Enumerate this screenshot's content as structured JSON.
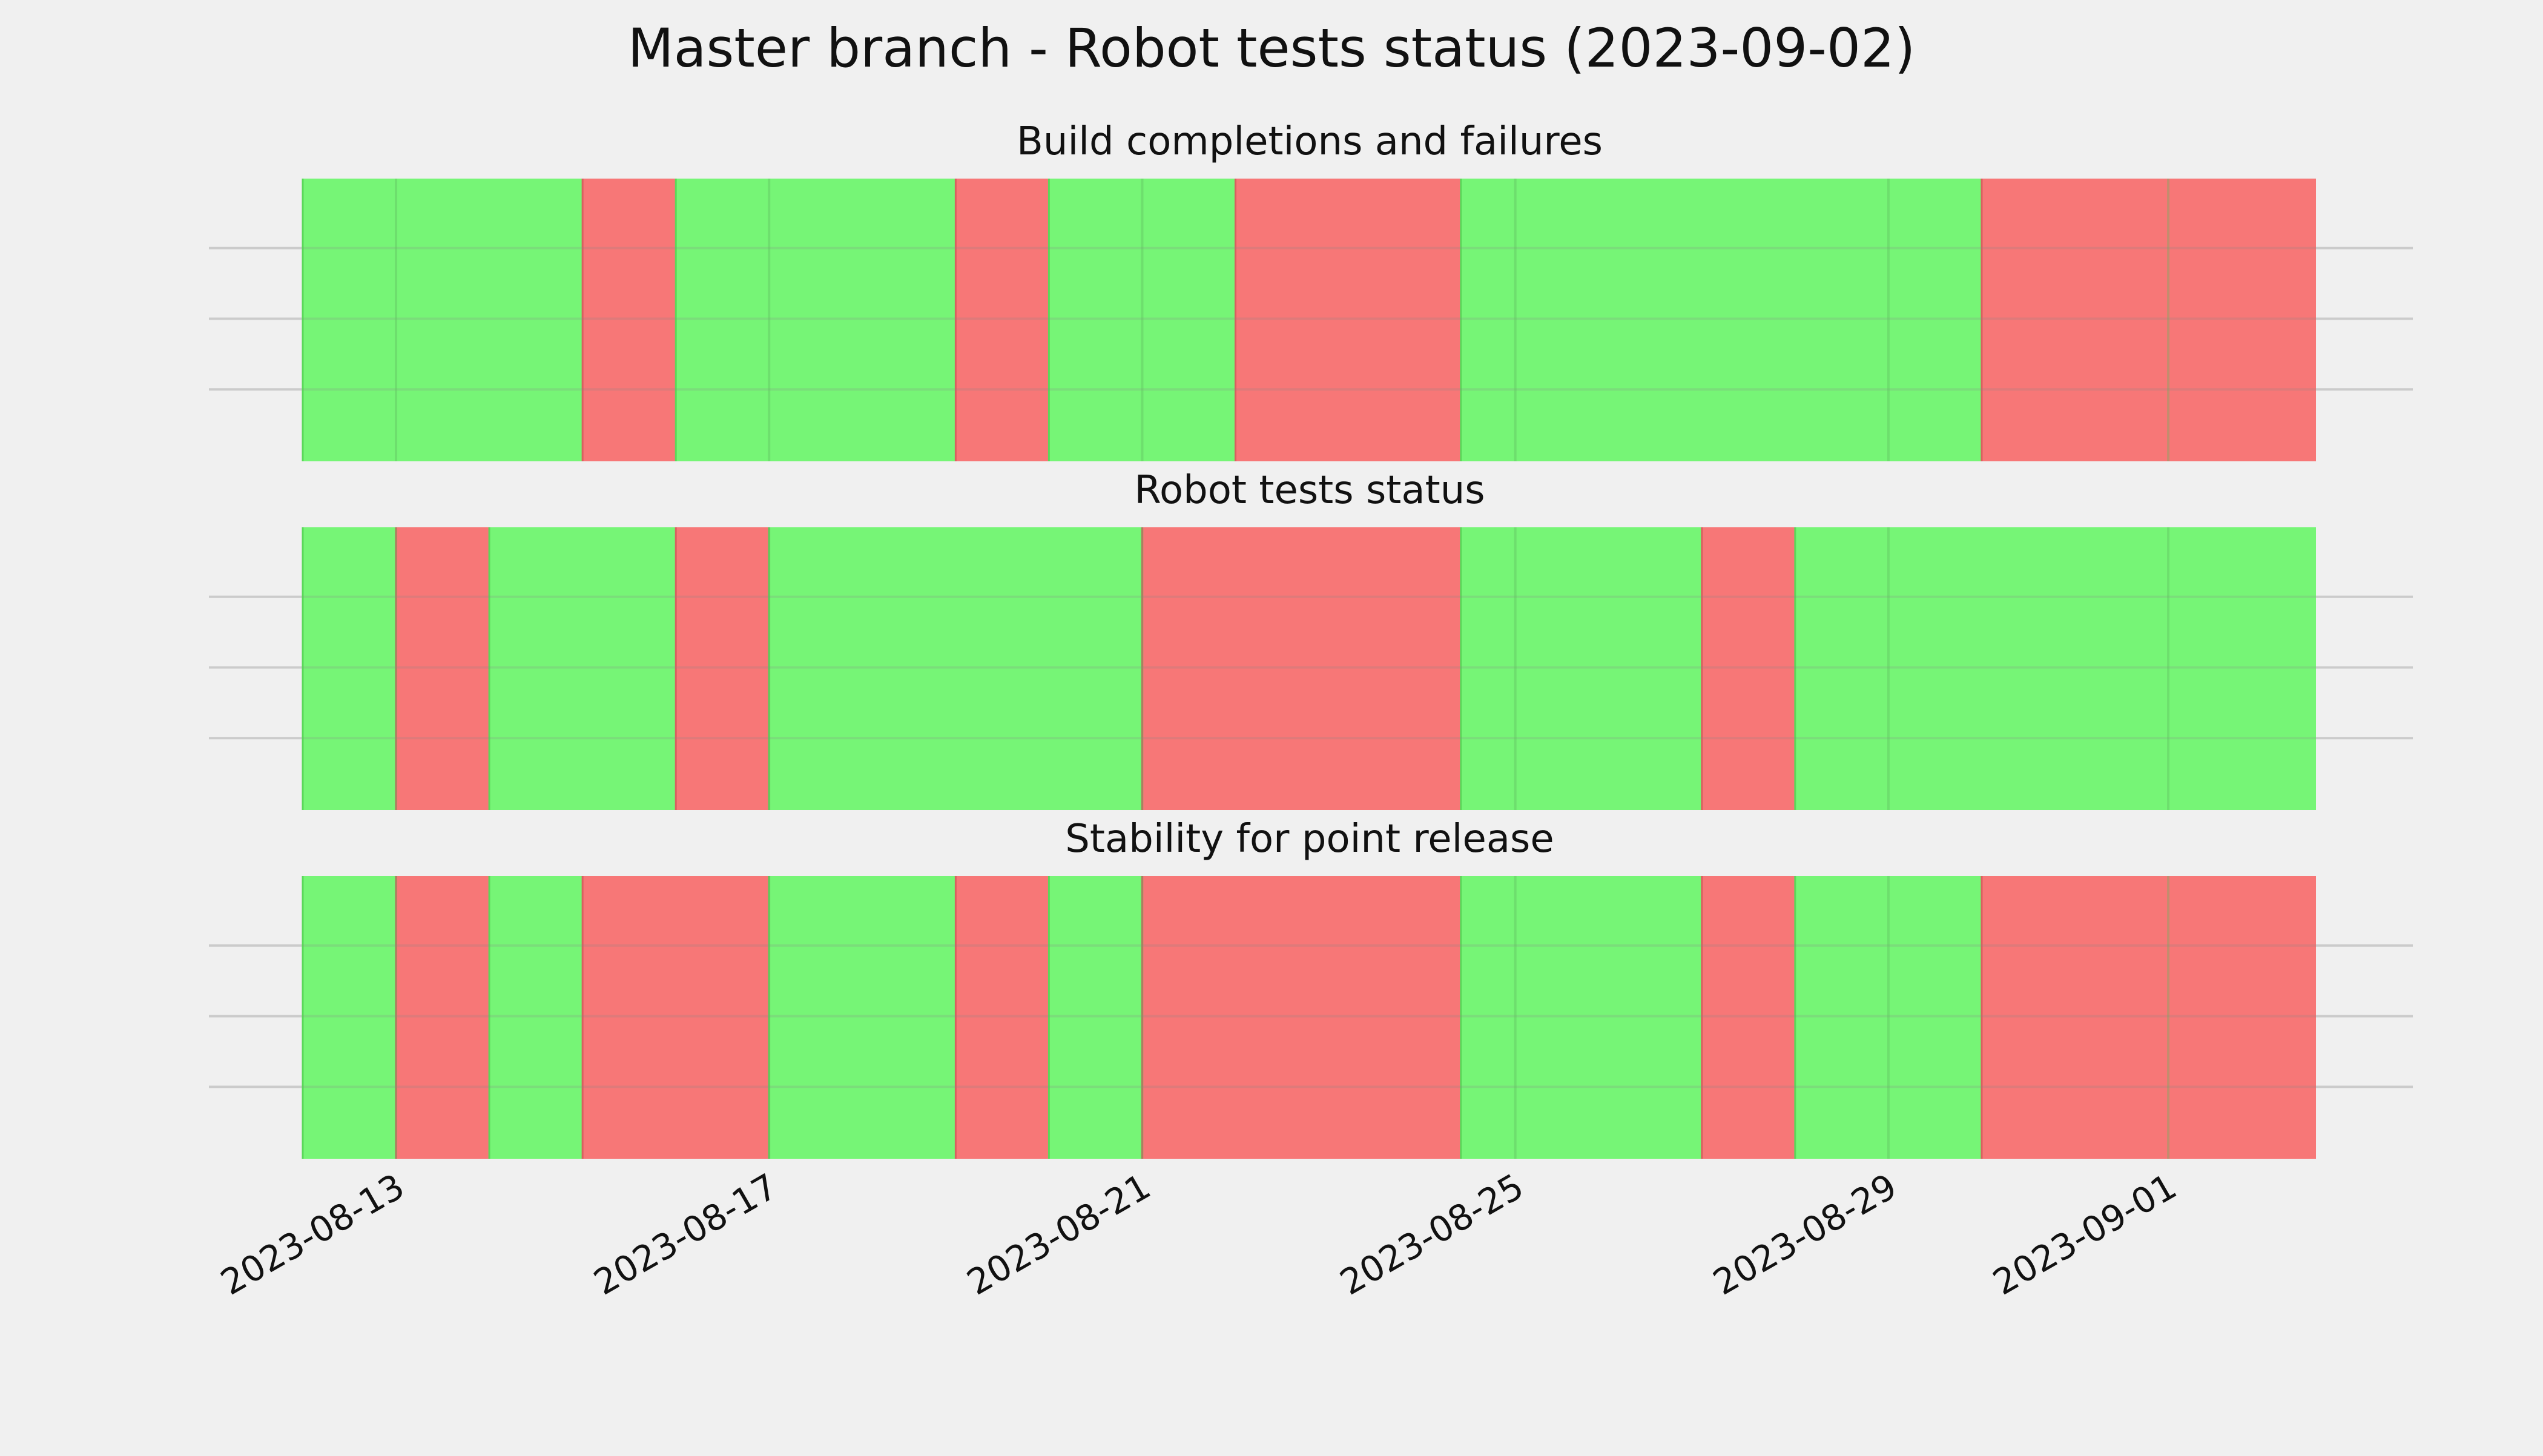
{
  "title": "Master branch - Robot tests status (2023-09-02)",
  "colors": {
    "pass": "#76f576",
    "fail": "#f77777",
    "background": "#f0f0f0",
    "grid": "#cbcbcb"
  },
  "chart_data": {
    "type": "timeline",
    "x_axis": {
      "type": "date",
      "range": [
        "2023-08-12T00:00",
        "2023-09-02T14:00"
      ],
      "ticks": [
        "2023-08-13",
        "2023-08-17",
        "2023-08-21",
        "2023-08-25",
        "2023-08-29",
        "2023-09-01"
      ]
    },
    "y_axis": {
      "tick_labels": false,
      "gridlines": 3
    },
    "grid": true,
    "status_legend": {
      "green": "pass",
      "red": "fail"
    },
    "panels": [
      {
        "title": "Build completions and failures",
        "segments": [
          {
            "start": "2023-08-12T00:00",
            "end": "2023-08-15T00:00",
            "status": "pass"
          },
          {
            "start": "2023-08-15T00:00",
            "end": "2023-08-16T00:00",
            "status": "fail"
          },
          {
            "start": "2023-08-16T00:00",
            "end": "2023-08-19T00:00",
            "status": "pass"
          },
          {
            "start": "2023-08-19T00:00",
            "end": "2023-08-20T00:00",
            "status": "fail"
          },
          {
            "start": "2023-08-20T00:00",
            "end": "2023-08-22T00:00",
            "status": "pass"
          },
          {
            "start": "2023-08-22T00:00",
            "end": "2023-08-24T10:00",
            "status": "fail"
          },
          {
            "start": "2023-08-24T10:00",
            "end": "2023-08-30T00:00",
            "status": "pass"
          },
          {
            "start": "2023-08-30T00:00",
            "end": "2023-09-02T14:00",
            "status": "fail"
          }
        ]
      },
      {
        "title": "Robot tests status",
        "segments": [
          {
            "start": "2023-08-12T00:00",
            "end": "2023-08-13T00:00",
            "status": "pass"
          },
          {
            "start": "2023-08-13T00:00",
            "end": "2023-08-14T00:00",
            "status": "fail"
          },
          {
            "start": "2023-08-14T00:00",
            "end": "2023-08-16T00:00",
            "status": "pass"
          },
          {
            "start": "2023-08-16T00:00",
            "end": "2023-08-17T00:00",
            "status": "fail"
          },
          {
            "start": "2023-08-17T00:00",
            "end": "2023-08-21T00:00",
            "status": "pass"
          },
          {
            "start": "2023-08-21T00:00",
            "end": "2023-08-24T10:00",
            "status": "fail"
          },
          {
            "start": "2023-08-24T10:00",
            "end": "2023-08-27T00:00",
            "status": "pass"
          },
          {
            "start": "2023-08-27T00:00",
            "end": "2023-08-28T00:00",
            "status": "fail"
          },
          {
            "start": "2023-08-28T00:00",
            "end": "2023-09-02T14:00",
            "status": "pass"
          }
        ]
      },
      {
        "title": "Stability for point release",
        "segments": [
          {
            "start": "2023-08-12T00:00",
            "end": "2023-08-13T00:00",
            "status": "pass"
          },
          {
            "start": "2023-08-13T00:00",
            "end": "2023-08-14T00:00",
            "status": "fail"
          },
          {
            "start": "2023-08-14T00:00",
            "end": "2023-08-15T00:00",
            "status": "pass"
          },
          {
            "start": "2023-08-15T00:00",
            "end": "2023-08-17T00:00",
            "status": "fail"
          },
          {
            "start": "2023-08-17T00:00",
            "end": "2023-08-19T00:00",
            "status": "pass"
          },
          {
            "start": "2023-08-19T00:00",
            "end": "2023-08-20T00:00",
            "status": "fail"
          },
          {
            "start": "2023-08-20T00:00",
            "end": "2023-08-21T00:00",
            "status": "pass"
          },
          {
            "start": "2023-08-21T00:00",
            "end": "2023-08-24T10:00",
            "status": "fail"
          },
          {
            "start": "2023-08-24T10:00",
            "end": "2023-08-27T00:00",
            "status": "pass"
          },
          {
            "start": "2023-08-27T00:00",
            "end": "2023-08-28T00:00",
            "status": "fail"
          },
          {
            "start": "2023-08-28T00:00",
            "end": "2023-08-30T00:00",
            "status": "pass"
          },
          {
            "start": "2023-08-30T00:00",
            "end": "2023-09-02T14:00",
            "status": "fail"
          }
        ]
      }
    ]
  }
}
